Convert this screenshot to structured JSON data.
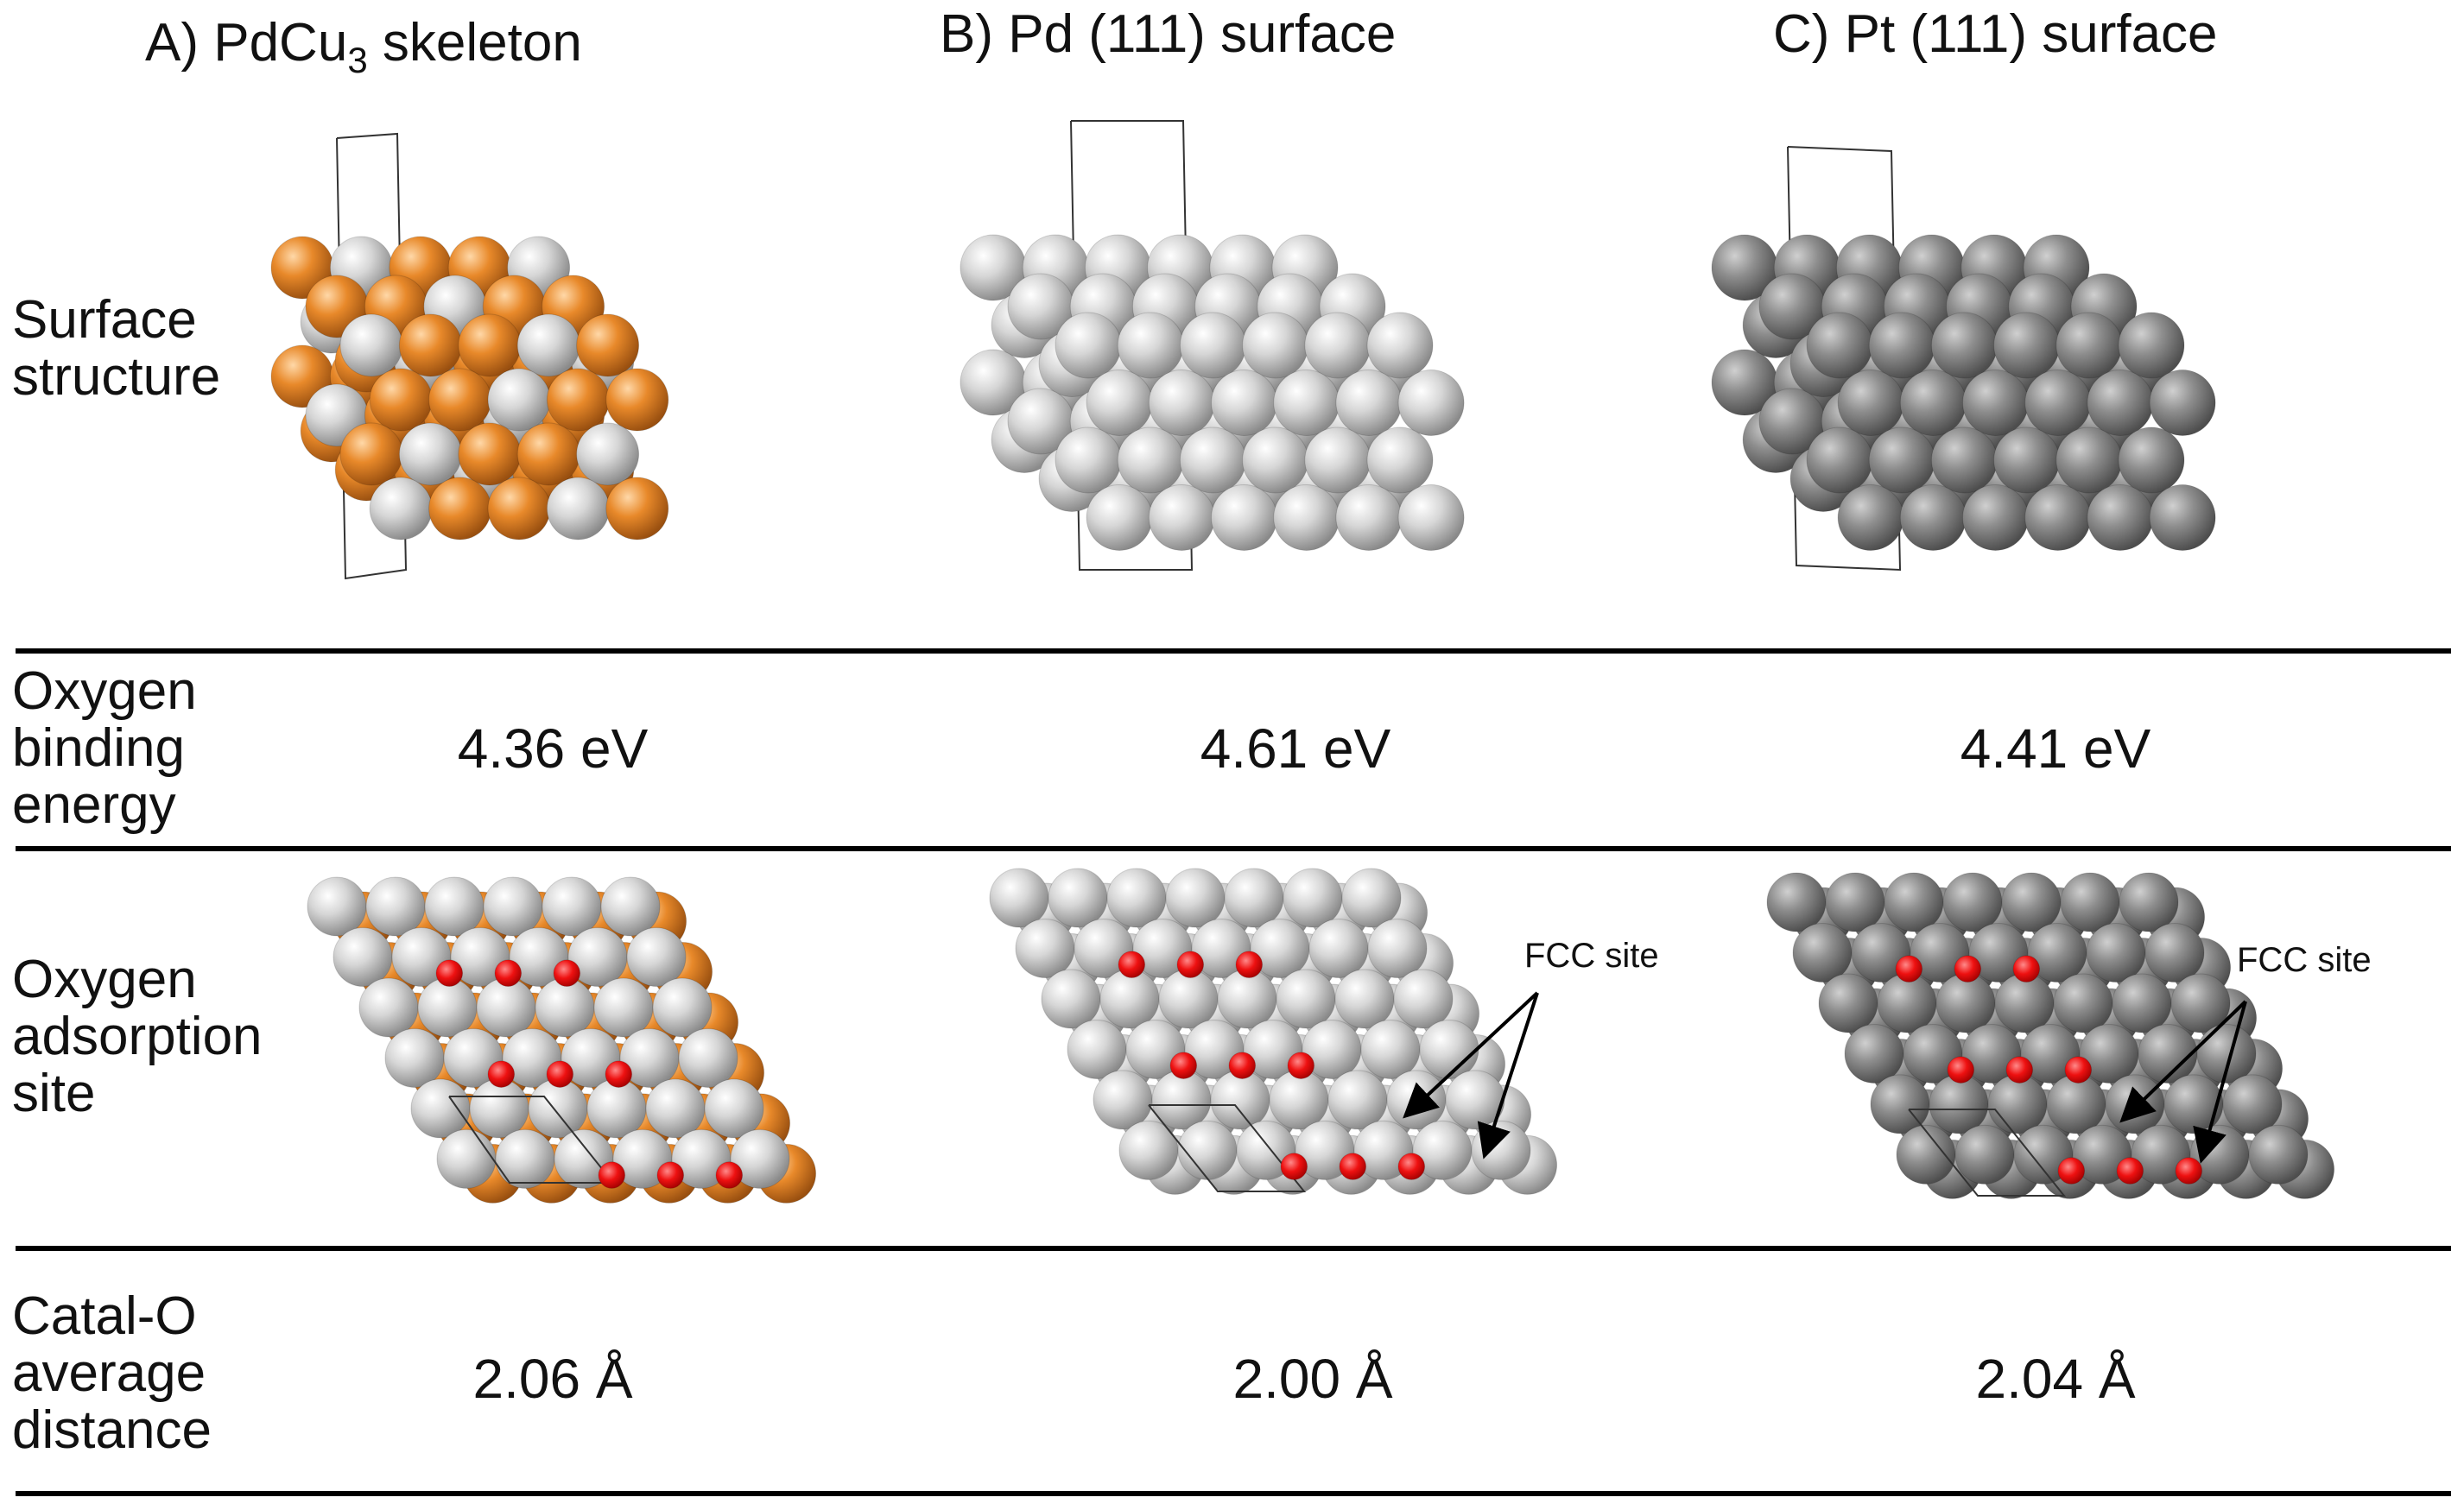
{
  "columns": {
    "a": {
      "title_pre": "A) PdCu",
      "title_sub": "3",
      "title_post": " skeleton"
    },
    "b": {
      "title": "B) Pd (111) surface"
    },
    "c": {
      "title": "C) Pt (111) surface"
    }
  },
  "rows": {
    "surface_structure": {
      "line1": "Surface",
      "line2": "structure"
    },
    "binding_energy": {
      "line1": "Oxygen",
      "line2": "binding",
      "line3": "energy",
      "a": "4.36 eV",
      "b": "4.61 eV",
      "c": "4.41 eV"
    },
    "adsorption_site": {
      "line1": "Oxygen",
      "line2": "adsorption",
      "line3": "site",
      "fcc_label_b": "FCC site",
      "fcc_label_c": "FCC site"
    },
    "distance": {
      "line1": "Catal-O",
      "line2": "average",
      "line3": "distance",
      "a": "2.06 Å",
      "b": "2.00 Å",
      "c": "2.04 Å"
    }
  },
  "colors": {
    "pd": "#cfcfcf",
    "pt": "#8f8f8f",
    "cu": "#e8892a",
    "oxygen": "#ee1111"
  }
}
